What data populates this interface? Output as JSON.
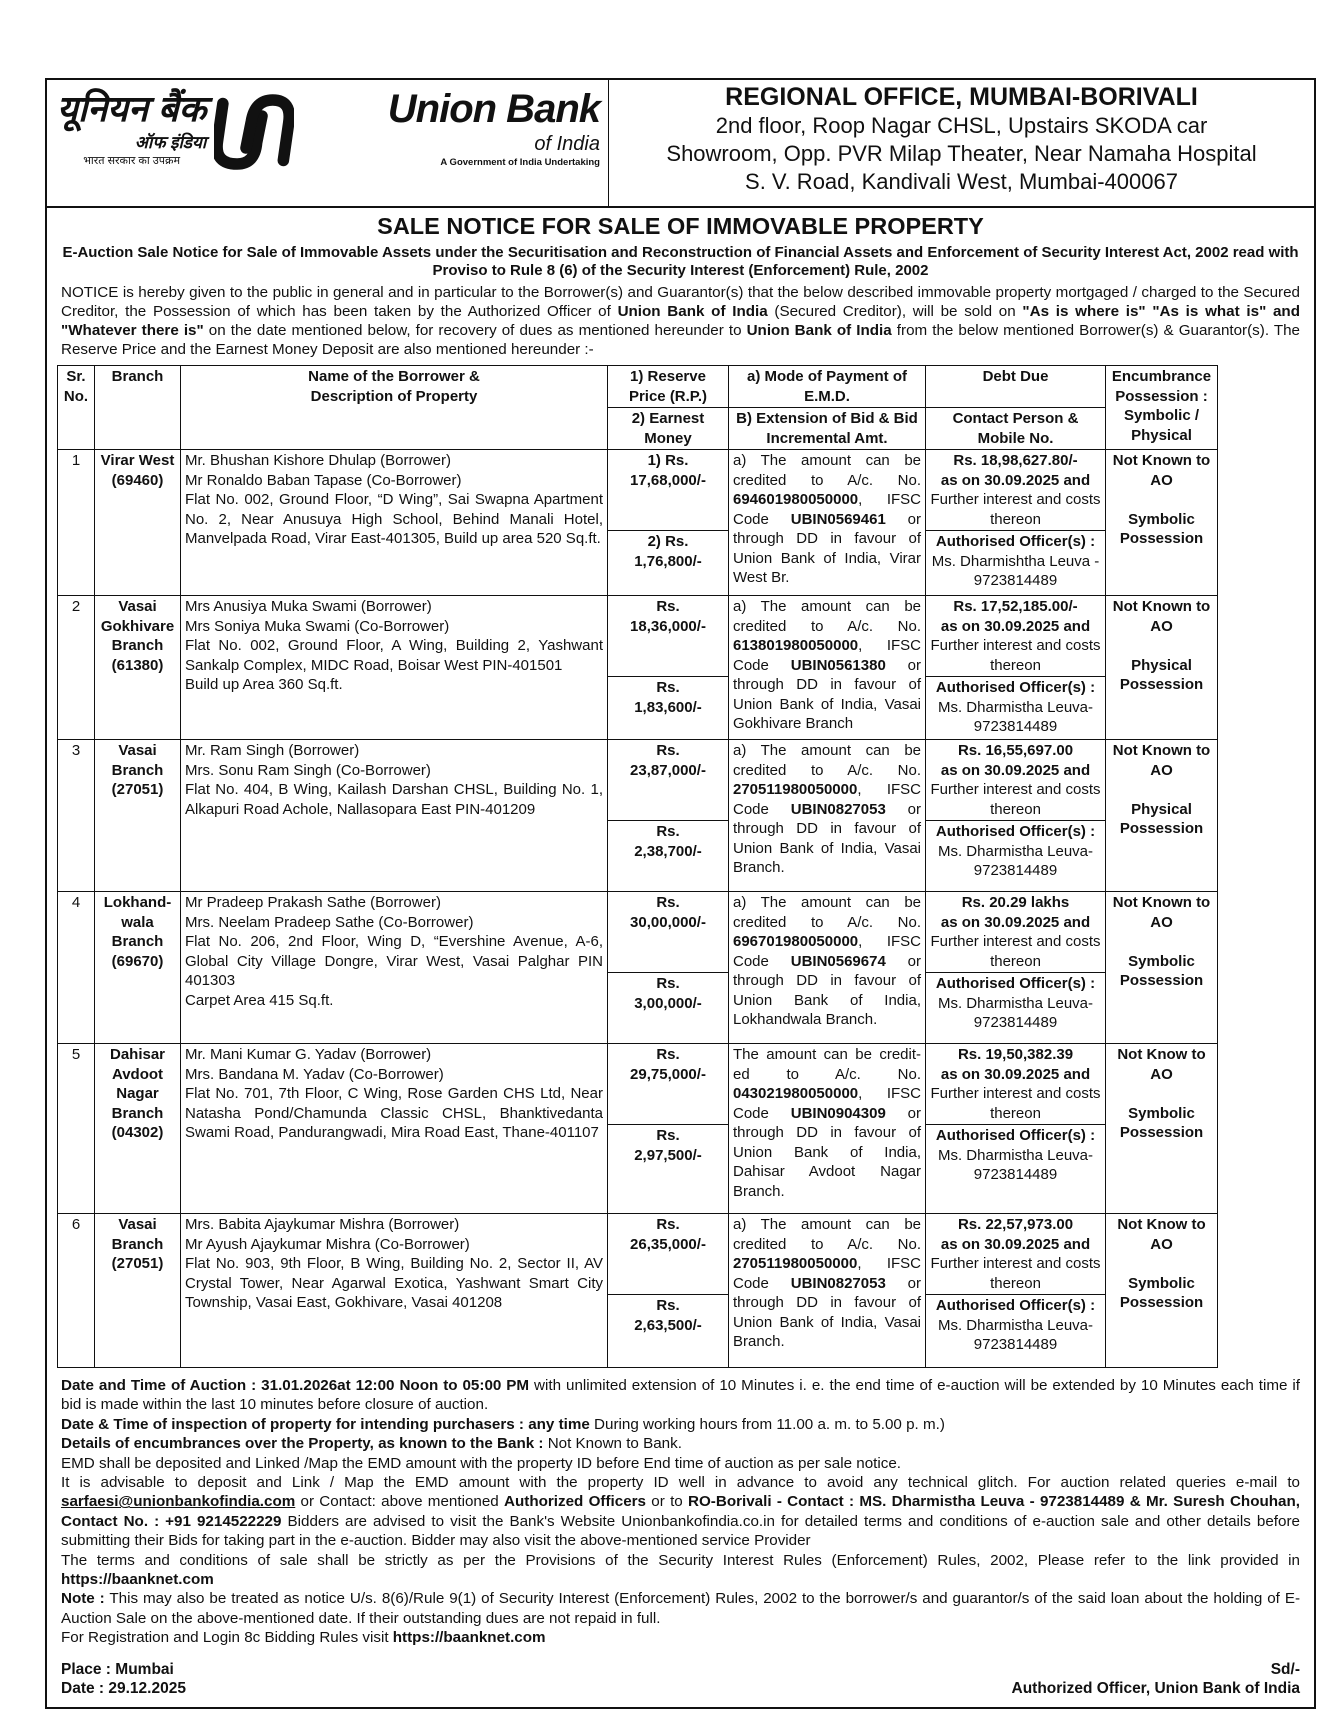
{
  "logo": {
    "hindi_name": "यूनियन बैंक",
    "hindi_sub": "ऑफ इंडिया",
    "hindi_tag": "भारत सरकार का उपक्रम",
    "name": "Union Bank",
    "name_sub": "of India",
    "tagline": "A Government of India Undertaking"
  },
  "office": {
    "title": "REGIONAL OFFICE, MUMBAI-BORIVALI",
    "address_lines": [
      "2nd floor, Roop Nagar CHSL, Upstairs SKODA car",
      "Showroom, Opp. PVR Milap Theater, Near Namaha Hospital",
      "S. V. Road, Kandivali West, Mumbai-400067"
    ]
  },
  "notice": {
    "title": "SALE NOTICE FOR SALE OF IMMOVABLE PROPERTY",
    "subtitle": "E-Auction Sale Notice for Sale of Immovable Assets under the Securitisation and Reconstruction of Financial Assets and Enforcement of Security Interest Act, 2002 read with Proviso to Rule 8 (6) of the Security Interest (Enforcement) Rule, 2002",
    "body": [
      {
        "t": "NOTICE is hereby given to the public in general and in particular to the Borrower(s) and Guarantor(s) that the below described immovable property mortgaged / charged to the Secured Creditor, the Possession of which has been taken by the Authorized Officer of ",
        "b": false
      },
      {
        "t": "Union Bank of India",
        "b": true
      },
      {
        "t": " (Secured Creditor), will be sold on ",
        "b": false
      },
      {
        "t": "\"As is where is\" \"As is what is\" and \"Whatever there is\"",
        "b": true
      },
      {
        "t": " on the date mentioned below, for recovery of dues as mentioned hereunder to ",
        "b": false
      },
      {
        "t": "Union Bank of India",
        "b": true
      },
      {
        "t": " from the below mentioned Borrower(s) & Guarantor(s). The Reserve Price and the Earnest Money Deposit are also mentioned hereunder :-",
        "b": false
      }
    ]
  },
  "table": {
    "headers": {
      "sr": "Sr. No.",
      "branch": "Branch",
      "borrower": [
        "Name of the Borrower &",
        "Description of Property"
      ],
      "reserve": "1) Reserve Price (R.P.)",
      "earnest": "2) Earnest Money",
      "mode": "a) Mode of Payment of E.M.D.",
      "extension": "B) Extension of Bid & Bid Incremental Amt.",
      "debt": "Debt Due",
      "contact": "Contact Person & Mobile No.",
      "encumbrance": "Encumbrance Possession : Symbolic / Physical"
    },
    "rows": [
      {
        "sr": "1",
        "branch": [
          "Virar West",
          "(69460)"
        ],
        "borrower": [
          "Mr. Bhushan Kishore Dhulap (Borrower)",
          "Mr Ronaldo Baban Tapase (Co-Borrower)",
          "Flat No. 002, Ground Floor, “D Wing”, Sai Swapna Apartment No. 2, Near Anusuya High School, Behind Manali Hotel, Manvelpada Road, Virar East-401305, Build up area 520 Sq.ft."
        ],
        "reserve": [
          "1) Rs.",
          "17,68,000/-"
        ],
        "earnest": [
          "2) Rs.",
          "1,76,800/-"
        ],
        "payment": {
          "pre": "a) The amount can be credited to A/c. No. ",
          "account": "694601980050000",
          "mid": ", IFSC Code ",
          "ifsc": "UBIN0569461",
          "post": " or through DD in favour of Union Bank of India, Virar West Br."
        },
        "debt": {
          "amount": "Rs. 18,98,627.80/-",
          "as_on": "as on 30.09.2025 and",
          "further": "Further interest and costs thereon"
        },
        "contact": {
          "label": "Authorised Officer(s) :",
          "person": "Ms. Dharmishtha Leuva - 9723814489"
        },
        "encumbrance": "Not Known to AO",
        "possession": "Symbolic Possession"
      },
      {
        "sr": "2",
        "branch": [
          "Vasai",
          "Gokhivare",
          "Branch",
          "(61380)"
        ],
        "borrower": [
          "Mrs Anusiya Muka Swami (Borrower)",
          "Mrs Soniya Muka Swami (Co-Borrower)",
          "Flat No. 002, Ground Floor, A Wing, Building 2, Yashwant Sankalp Complex, MIDC Road, Boisar West PIN-401501",
          "Build up Area 360 Sq.ft."
        ],
        "reserve": [
          "Rs.",
          "18,36,000/-"
        ],
        "earnest": [
          "Rs.",
          "1,83,600/-"
        ],
        "payment": {
          "pre": "a) The amount can be credited to A/c. No. ",
          "account": "613801980050000",
          "mid": ", IFSC Code ",
          "ifsc": "UBIN0561380",
          "post": " or through DD in favour of Union Bank of India, Vasai Gokhivare Branch"
        },
        "debt": {
          "amount": "Rs. 17,52,185.00/-",
          "as_on": "as on 30.09.2025 and",
          "further": "Further interest and costs thereon"
        },
        "contact": {
          "label": "Authorised Officer(s) :",
          "person": "Ms. Dharmistha Leuva- 9723814489"
        },
        "encumbrance": "Not Known to AO",
        "possession": "Physical Possession"
      },
      {
        "sr": "3",
        "branch": [
          "Vasai",
          "Branch",
          "(27051)"
        ],
        "borrower": [
          "Mr. Ram Singh (Borrower)",
          "Mrs. Sonu Ram Singh (Co-Borrower)",
          "Flat No. 404, B Wing, Kailash Darshan CHSL, Building No. 1, Alkapuri Road Achole, Nallasopara East PIN-401209"
        ],
        "reserve": [
          "Rs.",
          "23,87,000/-"
        ],
        "earnest": [
          "Rs.",
          "2,38,700/-"
        ],
        "payment": {
          "pre": "a) The amount can be credited to A/c. No. ",
          "account": "270511980050000",
          "mid": ", IFSC Code ",
          "ifsc": "UBIN0827053",
          "post": " or through DD in favour of Union Bank of India, Vasai Branch."
        },
        "debt": {
          "amount": "Rs. 16,55,697.00",
          "as_on": "as on 30.09.2025 and",
          "further": "Further interest and costs thereon"
        },
        "contact": {
          "label": "Authorised Officer(s) :",
          "person": "Ms. Dharmistha Leuva- 9723814489"
        },
        "encumbrance": "Not Known to AO",
        "possession": "Physical Possession"
      },
      {
        "sr": "4",
        "branch": [
          "Lokhand-",
          "wala",
          "Branch",
          "(69670)"
        ],
        "borrower": [
          "Mr Pradeep Prakash Sathe (Borrower)",
          "Mrs. Neelam Pradeep Sathe (Co-Borrower)",
          "Flat No. 206, 2nd Floor, Wing D, “Evershine Avenue, A-6, Global City Village Dongre, Virar West, Vasai Palghar PIN 401303",
          "Carpet Area 415 Sq.ft."
        ],
        "reserve": [
          "Rs.",
          "30,00,000/-"
        ],
        "earnest": [
          "Rs.",
          "3,00,000/-"
        ],
        "payment": {
          "pre": "a) The amount can be credited to A/c. No. ",
          "account": "696701980050000",
          "mid": ", IFSC Code ",
          "ifsc": "UBIN0569674",
          "post": " or through DD in favour of Union Bank of India, Lokhandwala Branch."
        },
        "debt": {
          "amount": "Rs. 20.29 lakhs",
          "as_on": "as on 30.09.2025 and",
          "further": "Further interest and costs thereon"
        },
        "contact": {
          "label": "Authorised Officer(s) :",
          "person": "Ms. Dharmistha Leuva- 9723814489"
        },
        "encumbrance": "Not Known to AO",
        "possession": "Symbolic Possession"
      },
      {
        "sr": "5",
        "branch": [
          "Dahisar",
          "Avdoot",
          "Nagar",
          "Branch",
          "(04302)"
        ],
        "borrower": [
          "Mr. Mani Kumar G. Yadav (Borrower)",
          "Mrs. Bandana M. Yadav (Co-Borrower)",
          "Flat No. 701, 7th Floor, C Wing, Rose Garden CHS Ltd, Near Natasha Pond/Chamunda Classic CHSL, Bhanktivedanta Swami Road, Pandurangwadi, Mira Road East, Thane-401107"
        ],
        "reserve": [
          "Rs.",
          "29,75,000/-"
        ],
        "earnest": [
          "Rs.",
          "2,97,500/-"
        ],
        "payment": {
          "pre": "The amount can be credit-ed to A/c. No. ",
          "account": "043021980050000",
          "mid": ", IFSC Code ",
          "ifsc": "UBIN0904309",
          "post": " or through DD in favour of Union Bank of India, Dahisar Avdoot Nagar Branch."
        },
        "debt": {
          "amount": "Rs. 19,50,382.39",
          "as_on": "as on 30.09.2025 and",
          "further": "Further interest and costs thereon"
        },
        "contact": {
          "label": "Authorised Officer(s) :",
          "person": "Ms. Dharmistha Leuva- 9723814489"
        },
        "encumbrance": "Not Know to AO",
        "possession": "Symbolic Possession"
      },
      {
        "sr": "6",
        "branch": [
          "Vasai",
          "Branch",
          "(27051)"
        ],
        "borrower": [
          "Mrs. Babita Ajaykumar Mishra (Borrower)",
          "Mr Ayush Ajaykumar Mishra (Co-Borrower)",
          "Flat No. 903, 9th Floor, B Wing, Building No. 2, Sector II, AV Crystal Tower, Near Agarwal Exotica, Yashwant Smart City Township, Vasai East, Gokhivare, Vasai 401208"
        ],
        "reserve": [
          "Rs.",
          "26,35,000/-"
        ],
        "earnest": [
          "Rs.",
          "2,63,500/-"
        ],
        "payment": {
          "pre": "a) The amount can be credited to A/c. No. ",
          "account": "270511980050000",
          "mid": ", IFSC Code ",
          "ifsc": "UBIN0827053",
          "post": " or through DD in favour of Union Bank of India, Vasai Branch."
        },
        "debt": {
          "amount": "Rs. 22,57,973.00",
          "as_on": "as on 30.09.2025 and",
          "further": "Further interest and costs thereon"
        },
        "contact": {
          "label": "Authorised Officer(s) :",
          "person": "Ms. Dharmistha Leuva- 9723814489"
        },
        "encumbrance": "Not Know to AO",
        "possession": "Symbolic Possession"
      }
    ]
  },
  "footer": [
    [
      {
        "t": "Date and Time of Auction : 31.01.2026at 12:00 Noon to 05:00 PM",
        "b": true
      },
      {
        "t": " with unlimited extension of 10 Minutes i. e. the end time of e-auction will be extended by 10 Minutes each time if bid is made within the last 10 minutes before closure of auction."
      }
    ],
    [
      {
        "t": "Date & Time of inspection of property for intending purchasers : any time",
        "b": true
      },
      {
        "t": " During working hours from 11.00 a. m. to 5.00 p. m.)"
      }
    ],
    [
      {
        "t": "Details of encumbrances over the Property, as known to the Bank :",
        "b": true
      },
      {
        "t": " Not Known to Bank."
      }
    ],
    [
      {
        "t": "EMD shall be deposited and Linked /Map the EMD amount with the property ID before End time of auction as per sale notice."
      }
    ],
    [
      {
        "t": "It is advisable to deposit and Link / Map the EMD amount with the property ID well in advance to avoid any technical glitch. For auction related queries e-mail to "
      },
      {
        "t": "sarfaesi@unionbankofindia.com",
        "b": true,
        "u": true
      },
      {
        "t": " or Contact: above mentioned "
      },
      {
        "t": "Authorized Officers",
        "b": true
      },
      {
        "t": " or to "
      },
      {
        "t": "RO-Borivali - Contact : MS. Dharmistha Leuva - 9723814489 & Mr. Suresh Chouhan, Contact No. : +91 9214522229",
        "b": true
      },
      {
        "t": " Bidders are advised to visit the Bank's Website Unionbankofindia.co.in for detailed terms and conditions of e-auction sale and other details before submitting their Bids for taking part in the e-auction. Bidder may also visit the above-mentioned service Provider"
      }
    ],
    [
      {
        "t": "The terms and conditions of sale shall be strictly as per the Provisions of the Security Interest Rules (Enforcement) Rules, 2002, Please refer to the link provided in "
      },
      {
        "t": "https://baanknet.com",
        "b": true
      }
    ],
    [
      {
        "t": "Note :",
        "b": true
      },
      {
        "t": " This may also be treated as notice U/s. 8(6)/Rule 9(1) of Security Interest (Enforcement) Rules, 2002 to the borrower/s and guarantor/s of the said loan about the holding of E-Auction Sale on the above-mentioned date. If their outstanding dues are not repaid in full."
      }
    ],
    [
      {
        "t": "For Registration and Login 8c Bidding Rules visit "
      },
      {
        "t": "https://baanknet.com",
        "b": true
      }
    ]
  ],
  "signoff": {
    "place": "Place : Mumbai",
    "date": "Date : 29.12.2025",
    "sd": "Sd/-",
    "officer": "Authorized Officer, Union Bank of India"
  }
}
